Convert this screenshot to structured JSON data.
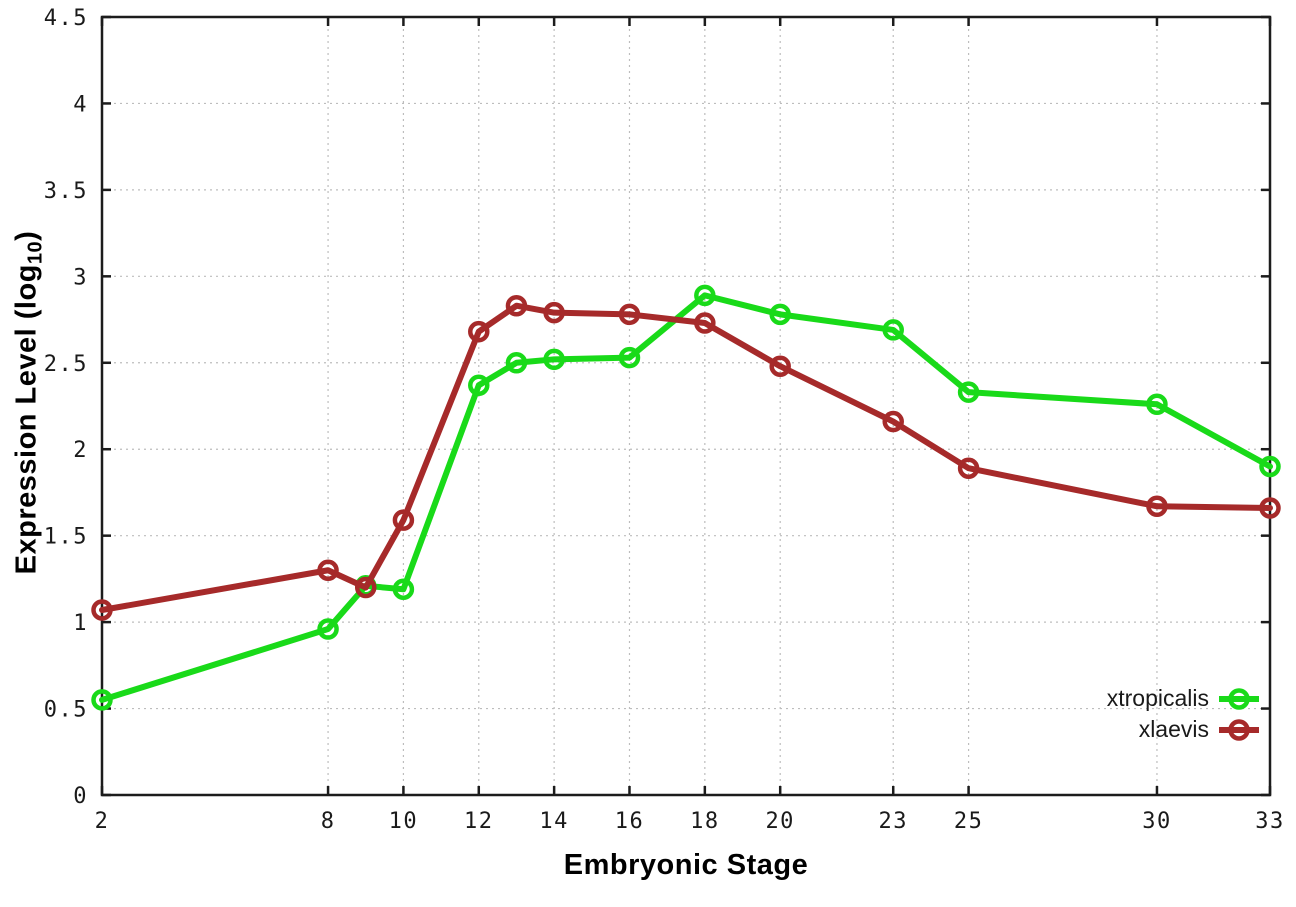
{
  "figure": {
    "background_color": "#ffffff",
    "axis_color": "#1c1c1c",
    "grid_color": "#bdbdbd",
    "tick_label_color": "#1a1a1a"
  },
  "chart_data": {
    "type": "line",
    "title": "",
    "xlabel": "Embryonic Stage",
    "ylabel": "Expression Level (log10)",
    "ylabel_parts": {
      "prefix": "Expression Level (log",
      "sub": "10",
      "suffix": ")"
    },
    "x": [
      2,
      8,
      9,
      10,
      12,
      13,
      14,
      16,
      18,
      20,
      23,
      25,
      30,
      33
    ],
    "xlim": [
      2,
      33
    ],
    "ylim": [
      0,
      4.5
    ],
    "x_ticks": [
      2,
      8,
      10,
      12,
      14,
      16,
      18,
      20,
      23,
      25,
      30,
      33
    ],
    "x_tick_labels": [
      "2",
      "8",
      "10",
      "12",
      "14",
      "16",
      "18",
      "20",
      "23",
      "25",
      "30",
      "33"
    ],
    "y_ticks": [
      0,
      0.5,
      1,
      1.5,
      2,
      2.5,
      3,
      3.5,
      4,
      4.5
    ],
    "y_tick_labels": [
      "0",
      "0.5",
      "1",
      "1.5",
      "2",
      "2.5",
      "3",
      "3.5",
      "4",
      "4.5"
    ],
    "grid": true,
    "legend_position": "bottom-right",
    "series": [
      {
        "name": "xtropicalis",
        "color": "#19DA19",
        "marker": "open-circle",
        "values": [
          0.55,
          0.96,
          1.21,
          1.19,
          2.37,
          2.5,
          2.52,
          2.53,
          2.89,
          2.78,
          2.69,
          2.33,
          2.26,
          1.9
        ]
      },
      {
        "name": "xlaevis",
        "color": "#A62A2A",
        "marker": "open-circle",
        "values": [
          1.07,
          1.3,
          1.2,
          1.59,
          2.68,
          2.83,
          2.79,
          2.78,
          2.73,
          2.48,
          2.16,
          1.89,
          1.67,
          1.66
        ]
      }
    ]
  }
}
